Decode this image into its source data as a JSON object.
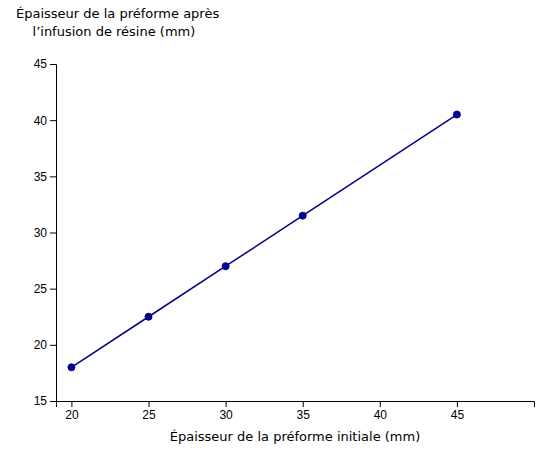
{
  "chart_data": {
    "type": "line",
    "x": [
      20,
      25,
      30,
      35,
      45
    ],
    "values": [
      18.0,
      22.5,
      27.0,
      31.5,
      40.5
    ],
    "color": "#00008B",
    "marker": "circle",
    "xlabel": "Épaisseur de la préforme initiale (mm)",
    "ylabel": [
      "Épaisseur de la préforme après",
      "    l’infusion de résine (mm)"
    ],
    "xlim": [
      19,
      50
    ],
    "ylim": [
      15,
      45
    ],
    "xticks": [
      20,
      25,
      30,
      35,
      40,
      45
    ],
    "yticks": [
      15,
      20,
      25,
      30,
      35,
      40,
      45
    ],
    "grid": false
  }
}
